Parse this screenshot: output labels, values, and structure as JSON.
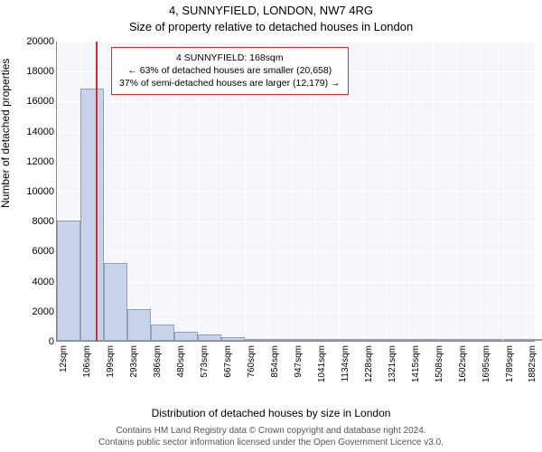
{
  "header": {
    "address": "4, SUNNYFIELD, LONDON, NW7 4RG",
    "subtitle": "Size of property relative to detached houses in London"
  },
  "axes": {
    "ylabel": "Number of detached properties",
    "xlabel": "Distribution of detached houses by size in London"
  },
  "footer": {
    "line1": "Contains HM Land Registry data © Crown copyright and database right 2024.",
    "line2": "Contains public sector information licensed under the Open Government Licence v3.0."
  },
  "chart": {
    "type": "histogram",
    "background_color": "#f4f6fb",
    "grid_color": "#ffffff",
    "bar_fill": "#c7d3ec",
    "bar_border": "rgba(0,0,0,0.25)",
    "x_min": 12,
    "x_max": 1920,
    "y_min": 0,
    "y_max": 20000,
    "y_ticks": [
      0,
      2000,
      4000,
      6000,
      8000,
      10000,
      12000,
      14000,
      16000,
      18000,
      20000
    ],
    "x_tick_values": [
      12,
      106,
      199,
      293,
      386,
      480,
      573,
      667,
      760,
      854,
      947,
      1041,
      1134,
      1228,
      1321,
      1415,
      1508,
      1602,
      1695,
      1789,
      1882
    ],
    "x_tick_labels": [
      "12sqm",
      "106sqm",
      "199sqm",
      "293sqm",
      "386sqm",
      "480sqm",
      "573sqm",
      "667sqm",
      "760sqm",
      "854sqm",
      "947sqm",
      "1041sqm",
      "1134sqm",
      "1228sqm",
      "1321sqm",
      "1415sqm",
      "1508sqm",
      "1602sqm",
      "1695sqm",
      "1789sqm",
      "1882sqm"
    ],
    "bin_starts": [
      12,
      106,
      199,
      293,
      386,
      480,
      573,
      667,
      760,
      854,
      947,
      1041,
      1134,
      1228,
      1321,
      1415,
      1508,
      1602,
      1695,
      1789,
      1882
    ],
    "bin_width": 93.5,
    "counts": [
      8000,
      16800,
      5200,
      2100,
      1100,
      600,
      400,
      250,
      150,
      100,
      80,
      60,
      50,
      40,
      30,
      25,
      20,
      15,
      10,
      10,
      5
    ],
    "marker": {
      "value": 168,
      "color": "#c9302c"
    },
    "annotation": {
      "line1": "4 SUNNYFIELD: 168sqm",
      "line2": "← 63% of detached houses are smaller (20,658)",
      "line3": "37% of semi-detached houses are larger (12,179) →",
      "border_color": "#c9302c",
      "text_color": "#000000"
    }
  }
}
